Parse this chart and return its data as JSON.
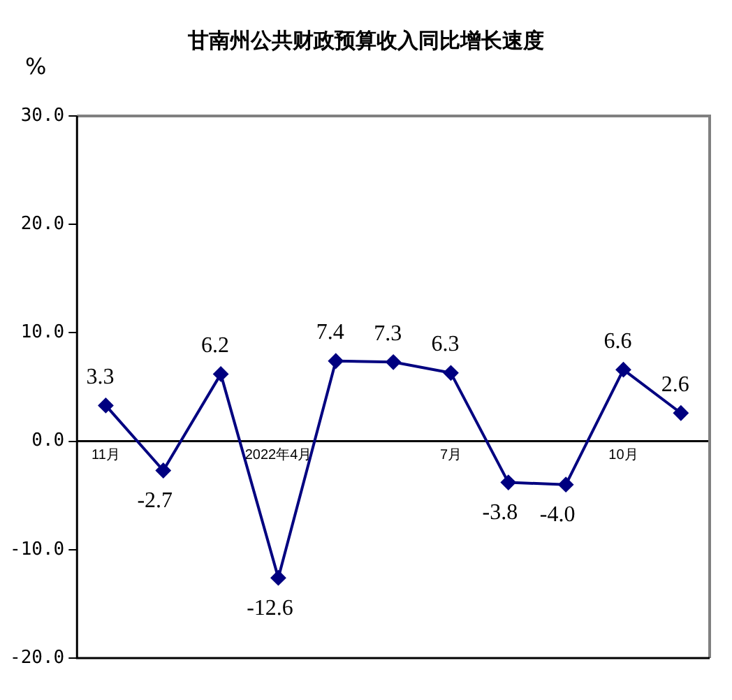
{
  "chart_data": {
    "type": "line",
    "title": "甘南州公共财政预算收入同比增长速度",
    "ylabel": "%",
    "categories": [
      "11月",
      null,
      null,
      "2022年4月",
      null,
      null,
      "7月",
      null,
      null,
      "10月",
      null
    ],
    "series": [
      {
        "color": "#000080",
        "values": [
          3.3,
          -2.7,
          6.2,
          -12.6,
          7.4,
          7.3,
          6.3,
          -3.8,
          -4.0,
          6.6,
          2.6
        ],
        "value_labels": [
          "3.3",
          "-2.7",
          "6.2",
          "-12.6",
          "7.4",
          "7.3",
          "6.3",
          "-3.8",
          "-4.0",
          "6.6",
          "2.6"
        ]
      }
    ],
    "ylim": [
      -20,
      30
    ],
    "yticks": [
      {
        "value": -20,
        "label": "-20.0"
      },
      {
        "value": -10,
        "label": "-10.0"
      },
      {
        "value": 0,
        "label": "0.0"
      },
      {
        "value": 10,
        "label": "10.0"
      },
      {
        "value": 20,
        "label": "20.0"
      },
      {
        "value": 30,
        "label": "30.0"
      }
    ],
    "grid": false,
    "legend": false,
    "marker": "diamond",
    "line_style": "solid"
  }
}
